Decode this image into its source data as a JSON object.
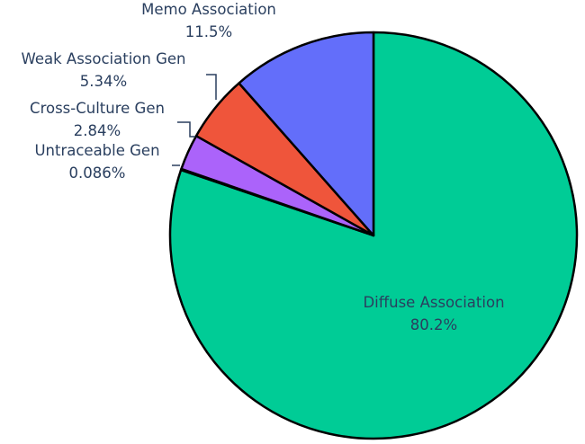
{
  "chart_data": {
    "type": "pie",
    "title": "",
    "start": "12 o'clock",
    "direction": "clockwise",
    "text_color": "#2a3f5f",
    "slices": [
      {
        "label": "Diffuse Association",
        "value": 80.2,
        "value_label": "80.2%",
        "color": "#00cc96",
        "label_placement": "inside"
      },
      {
        "label": "Untraceable Gen",
        "value": 0.086,
        "value_label": "0.086%",
        "color": "#19d3f3",
        "label_placement": "outside"
      },
      {
        "label": "Cross-Culture Gen",
        "value": 2.84,
        "value_label": "2.84%",
        "color": "#ab63fa",
        "label_placement": "outside"
      },
      {
        "label": "Weak Association Gen",
        "value": 5.34,
        "value_label": "5.34%",
        "color": "#ef553b",
        "label_placement": "outside"
      },
      {
        "label": "Memo Association",
        "value": 11.5,
        "value_label": "11.5%",
        "color": "#636efa",
        "label_placement": "outside"
      }
    ]
  }
}
